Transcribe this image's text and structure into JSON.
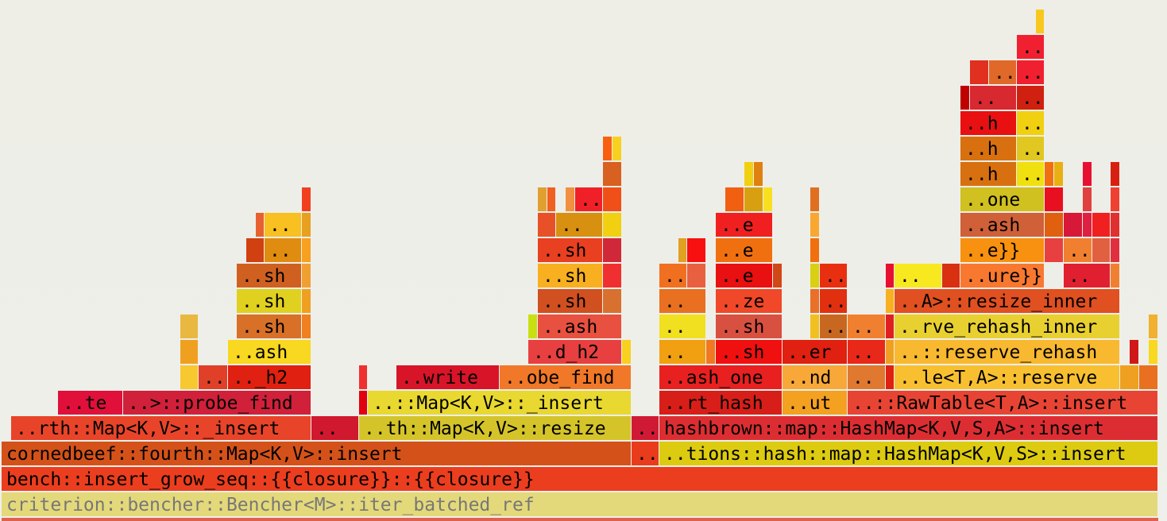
{
  "frames": [
    "criterion::bencher::Bencher<M>::iter_batched_ref",
    "bench::insert_grow_seq::{{closure}}::{{closure}}",
    "cornedbeef::fourth::Map<K,V>::insert",
    "..",
    "..tions::hash::map::HashMap<K,V,S>::insert",
    "..rth::Map<K,V>::_insert",
    "..",
    "..th::Map<K,V>::resize",
    "..",
    "hashbrown::map::HashMap<K,V,S,A>::insert",
    "..te",
    "..>::probe_find",
    "..::Map<K,V>::_insert",
    "..rt_hash",
    "..ut",
    "..::RawTable<T,A>::insert",
    "..",
    ".._h2",
    "..write",
    "..obe_find",
    "..ash_one",
    "..nd",
    "..",
    "..le<T,A>::reserve",
    "..ash",
    "..d_h2",
    "..",
    "..sh",
    "..er",
    "..",
    "..::reserve_rehash",
    "..sh",
    "..ash",
    "..",
    "..sh",
    "..",
    "..",
    "..rve_rehash_inner",
    "..sh",
    "..sh",
    "..",
    "..ze",
    "..",
    "..A>::resize_inner",
    "..sh",
    "..sh",
    "..",
    "..e",
    "..",
    "..",
    "..ure}}",
    "..",
    "..",
    "..sh",
    "..e",
    "..e}}",
    "..",
    "..",
    "..",
    "..e",
    "..ash",
    "..",
    "..one",
    "..h",
    "..",
    "..h",
    "..",
    "..h",
    "..",
    "..",
    "..",
    "..",
    "..",
    ".."
  ]
}
